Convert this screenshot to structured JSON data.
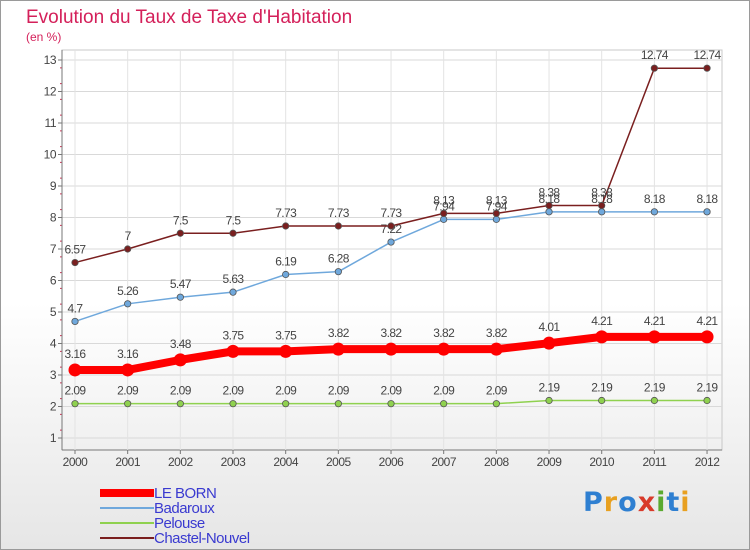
{
  "title": "Evolution du Taux de Taxe d'Habitation",
  "subtitle": "(en %)",
  "logo_text": "Proxiti",
  "chart_data": {
    "type": "line",
    "title": "Evolution du Taux de Taxe d'Habitation",
    "subtitle": "(en %)",
    "xlabel": "",
    "ylabel": "",
    "x": [
      "2000",
      "2001",
      "2002",
      "2003",
      "2004",
      "2005",
      "2006",
      "2007",
      "2008",
      "2009",
      "2010",
      "2011",
      "2012"
    ],
    "ylim": [
      1,
      13
    ],
    "yticks": [
      "1",
      "2",
      "3",
      "4",
      "5",
      "6",
      "7",
      "8",
      "9",
      "10",
      "11",
      "12",
      "13"
    ],
    "grid": true,
    "legend": "bottom-left",
    "series": [
      {
        "name": "LE BORN",
        "color": "#ff0000",
        "values": [
          3.16,
          3.16,
          3.48,
          3.75,
          3.75,
          3.82,
          3.82,
          3.82,
          3.82,
          4.01,
          4.21,
          4.21,
          4.21
        ],
        "labels": [
          "3.16",
          "3.16",
          "3.48",
          "3.75",
          "3.75",
          "3.82",
          "3.82",
          "3.82",
          "3.82",
          "4.01",
          "4.21",
          "4.21",
          "4.21"
        ]
      },
      {
        "name": "Badaroux",
        "color": "#6fa8dc",
        "values": [
          4.7,
          5.26,
          5.47,
          5.63,
          6.19,
          6.28,
          7.22,
          7.94,
          7.94,
          8.18,
          8.18,
          8.18,
          8.18
        ],
        "labels": [
          "4.7",
          "5.26",
          "5.47",
          "5.63",
          "6.19",
          "6.28",
          "7.22",
          "7.94",
          "7.94",
          "8.18",
          "8.18",
          "8.18",
          "8.18"
        ]
      },
      {
        "name": "Pelouse",
        "color": "#8fd14f",
        "values": [
          2.09,
          2.09,
          2.09,
          2.09,
          2.09,
          2.09,
          2.09,
          2.09,
          2.09,
          2.19,
          2.19,
          2.19,
          2.19
        ],
        "labels": [
          "2.09",
          "2.09",
          "2.09",
          "2.09",
          "2.09",
          "2.09",
          "2.09",
          "2.09",
          "2.09",
          "2.19",
          "2.19",
          "2.19",
          "2.19"
        ]
      },
      {
        "name": "Chastel-Nouvel",
        "color": "#7a1f1f",
        "values": [
          6.57,
          7,
          7.5,
          7.5,
          7.73,
          7.73,
          7.73,
          8.13,
          8.13,
          8.38,
          8.38,
          12.74,
          12.74
        ],
        "labels": [
          "6.57",
          "7",
          "7.5",
          "7.5",
          "7.73",
          "7.73",
          "7.73",
          "8.13",
          "8.13",
          "8.38",
          "8.38",
          "12.74",
          "12.74"
        ]
      }
    ]
  }
}
